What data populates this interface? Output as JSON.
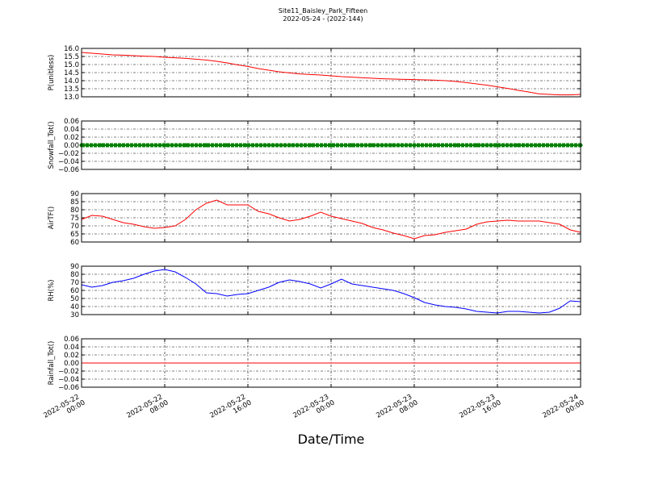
{
  "chart_data": [
    {
      "type": "line",
      "title": "Site11_Baisley_Park_Fifteen",
      "subtitle": "2022-05-24 - (2022-144)",
      "y_label": "P(unitless)",
      "color": "#ff0000",
      "ylim": [
        13.0,
        16.0
      ],
      "yticks": [
        {
          "value": 13.0,
          "label": "13.0"
        },
        13.5,
        {
          "value": 14.0,
          "label": "14.0"
        },
        14.5,
        {
          "value": 15.0,
          "label": "15.0"
        },
        15.5,
        {
          "value": 16.0,
          "label": "16.0"
        }
      ],
      "x": [
        "2022-05-22 00:00",
        "2022-05-22 01:00",
        "2022-05-22 02:00",
        "2022-05-22 03:00",
        "2022-05-22 04:00",
        "2022-05-22 05:00",
        "2022-05-22 06:00",
        "2022-05-22 07:00",
        "2022-05-22 08:00",
        "2022-05-22 09:00",
        "2022-05-22 10:00",
        "2022-05-22 11:00",
        "2022-05-22 12:00",
        "2022-05-22 13:00",
        "2022-05-22 14:00",
        "2022-05-22 15:00",
        "2022-05-22 16:00",
        "2022-05-22 17:00",
        "2022-05-22 18:00",
        "2022-05-22 19:00",
        "2022-05-22 20:00",
        "2022-05-22 21:00",
        "2022-05-22 22:00",
        "2022-05-22 23:00",
        "2022-05-23 00:00",
        "2022-05-23 01:00",
        "2022-05-23 02:00",
        "2022-05-23 03:00",
        "2022-05-23 04:00",
        "2022-05-23 05:00",
        "2022-05-23 06:00",
        "2022-05-23 07:00",
        "2022-05-23 08:00",
        "2022-05-23 09:00",
        "2022-05-23 10:00",
        "2022-05-23 11:00",
        "2022-05-23 12:00",
        "2022-05-23 13:00",
        "2022-05-23 14:00",
        "2022-05-23 15:00",
        "2022-05-23 16:00",
        "2022-05-23 17:00",
        "2022-05-23 18:00",
        "2022-05-23 19:00",
        "2022-05-23 20:00",
        "2022-05-23 21:00",
        "2022-05-23 22:00",
        "2022-05-23 23:00",
        "2022-05-24 00:00"
      ],
      "values": [
        15.75,
        15.7,
        15.65,
        15.6,
        15.58,
        15.55,
        15.52,
        15.5,
        15.45,
        15.42,
        15.38,
        15.33,
        15.28,
        15.2,
        15.1,
        14.98,
        14.88,
        14.75,
        14.65,
        14.55,
        14.48,
        14.42,
        14.38,
        14.35,
        14.3,
        14.25,
        14.22,
        14.18,
        14.15,
        14.12,
        14.1,
        14.08,
        14.07,
        14.05,
        14.03,
        14.0,
        13.95,
        13.88,
        13.8,
        13.72,
        13.62,
        13.52,
        13.4,
        13.3,
        13.18,
        13.15,
        13.12,
        13.12,
        13.15
      ]
    },
    {
      "type": "line",
      "y_label": "Snowfall_Tot()",
      "color": "#008000",
      "marker": true,
      "ylim": [
        -0.06,
        0.06
      ],
      "yticks": [
        {
          "value": -0.06,
          "label": "−0.06"
        },
        {
          "value": -0.04,
          "label": "−0.04"
        },
        {
          "value": -0.02,
          "label": "−0.02"
        },
        {
          "value": 0,
          "label": "0.00"
        },
        0.02,
        0.04,
        0.06
      ],
      "x": [
        "2022-05-22 00:00",
        "2022-05-22 02:00",
        "2022-05-22 04:00",
        "2022-05-22 06:00",
        "2022-05-22 08:00",
        "2022-05-22 10:00",
        "2022-05-22 12:00",
        "2022-05-22 14:00",
        "2022-05-22 16:00",
        "2022-05-22 18:00",
        "2022-05-22 20:00",
        "2022-05-22 22:00",
        "2022-05-23 00:00",
        "2022-05-23 02:00",
        "2022-05-23 04:00",
        "2022-05-23 06:00",
        "2022-05-23 08:00",
        "2022-05-23 10:00",
        "2022-05-23 12:00",
        "2022-05-23 14:00",
        "2022-05-23 16:00",
        "2022-05-23 18:00",
        "2022-05-23 20:00",
        "2022-05-23 22:00",
        "2022-05-24 00:00"
      ],
      "values": [
        0,
        0,
        0,
        0,
        0,
        0,
        0,
        0,
        0,
        0,
        0,
        0,
        0,
        0,
        0,
        0,
        0,
        0,
        0,
        0,
        0,
        0,
        0,
        0,
        0
      ]
    },
    {
      "type": "line",
      "y_label": "AirTF()",
      "color": "#ff0000",
      "ylim": [
        60,
        90
      ],
      "yticks": [
        60,
        65,
        70,
        75,
        80,
        85,
        90
      ],
      "x": [
        "2022-05-22 00:00",
        "2022-05-22 01:00",
        "2022-05-22 02:00",
        "2022-05-22 03:00",
        "2022-05-22 04:00",
        "2022-05-22 05:00",
        "2022-05-22 06:00",
        "2022-05-22 07:00",
        "2022-05-22 08:00",
        "2022-05-22 09:00",
        "2022-05-22 10:00",
        "2022-05-22 11:00",
        "2022-05-22 12:00",
        "2022-05-22 13:00",
        "2022-05-22 14:00",
        "2022-05-22 15:00",
        "2022-05-22 16:00",
        "2022-05-22 17:00",
        "2022-05-22 18:00",
        "2022-05-22 19:00",
        "2022-05-22 20:00",
        "2022-05-22 21:00",
        "2022-05-22 22:00",
        "2022-05-22 23:00",
        "2022-05-23 00:00",
        "2022-05-23 01:00",
        "2022-05-23 02:00",
        "2022-05-23 03:00",
        "2022-05-23 04:00",
        "2022-05-23 05:00",
        "2022-05-23 06:00",
        "2022-05-23 07:00",
        "2022-05-23 08:00",
        "2022-05-23 09:00",
        "2022-05-23 10:00",
        "2022-05-23 11:00",
        "2022-05-23 12:00",
        "2022-05-23 13:00",
        "2022-05-23 14:00",
        "2022-05-23 15:00",
        "2022-05-23 16:00",
        "2022-05-23 17:00",
        "2022-05-23 18:00",
        "2022-05-23 19:00",
        "2022-05-23 20:00",
        "2022-05-23 21:00",
        "2022-05-23 22:00",
        "2022-05-23 23:00",
        "2022-05-24 00:00"
      ],
      "values": [
        74,
        76.5,
        76,
        74,
        72,
        71,
        69.5,
        68.5,
        69,
        70,
        74,
        80,
        84,
        86,
        83,
        83,
        83,
        79,
        77.5,
        75,
        73,
        74,
        76,
        78.5,
        76,
        74.5,
        73,
        71.5,
        69,
        67.5,
        65.5,
        64,
        62,
        64,
        64.5,
        66,
        67,
        68,
        71,
        72.5,
        73,
        73.5,
        73,
        73,
        73,
        72,
        71,
        67.5,
        66
      ]
    },
    {
      "type": "line",
      "y_label": "RH(%)",
      "color": "#0000ff",
      "ylim": [
        30,
        90
      ],
      "yticks": [
        30,
        40,
        50,
        60,
        70,
        80,
        90
      ],
      "x": [
        "2022-05-22 00:00",
        "2022-05-22 01:00",
        "2022-05-22 02:00",
        "2022-05-22 03:00",
        "2022-05-22 04:00",
        "2022-05-22 05:00",
        "2022-05-22 06:00",
        "2022-05-22 07:00",
        "2022-05-22 08:00",
        "2022-05-22 09:00",
        "2022-05-22 10:00",
        "2022-05-22 11:00",
        "2022-05-22 12:00",
        "2022-05-22 13:00",
        "2022-05-22 14:00",
        "2022-05-22 15:00",
        "2022-05-22 16:00",
        "2022-05-22 17:00",
        "2022-05-22 18:00",
        "2022-05-22 19:00",
        "2022-05-22 20:00",
        "2022-05-22 21:00",
        "2022-05-22 22:00",
        "2022-05-22 23:00",
        "2022-05-23 00:00",
        "2022-05-23 01:00",
        "2022-05-23 02:00",
        "2022-05-23 03:00",
        "2022-05-23 04:00",
        "2022-05-23 05:00",
        "2022-05-23 06:00",
        "2022-05-23 07:00",
        "2022-05-23 08:00",
        "2022-05-23 09:00",
        "2022-05-23 10:00",
        "2022-05-23 11:00",
        "2022-05-23 12:00",
        "2022-05-23 13:00",
        "2022-05-23 14:00",
        "2022-05-23 15:00",
        "2022-05-23 16:00",
        "2022-05-23 17:00",
        "2022-05-23 18:00",
        "2022-05-23 19:00",
        "2022-05-23 20:00",
        "2022-05-23 21:00",
        "2022-05-23 22:00",
        "2022-05-23 23:00",
        "2022-05-24 00:00"
      ],
      "values": [
        67,
        64,
        66,
        70,
        72,
        75,
        80,
        84,
        86,
        83,
        76,
        68,
        57,
        56,
        53,
        55,
        56,
        60,
        64,
        70,
        73,
        71,
        68,
        63,
        68,
        74,
        68,
        66,
        64,
        62,
        60,
        56,
        51,
        45,
        42,
        40,
        39,
        37,
        34,
        33,
        32,
        34,
        34,
        33,
        32,
        33,
        38,
        47,
        46
      ]
    },
    {
      "type": "line",
      "y_label": "Rainfall_Tot()",
      "x_label": "Date/Time",
      "color": "#ff0000",
      "ylim": [
        -0.06,
        0.06
      ],
      "yticks": [
        {
          "value": -0.06,
          "label": "−0.06"
        },
        {
          "value": -0.04,
          "label": "−0.04"
        },
        {
          "value": -0.02,
          "label": "−0.02"
        },
        {
          "value": 0,
          "label": "0.00"
        },
        0.02,
        0.04,
        0.06
      ],
      "xlim": [
        "2022-05-22 00:00",
        "2022-05-24 00:00"
      ],
      "xticks": [
        "2022-05-22 00:00",
        "2022-05-22 08:00",
        "2022-05-22 16:00",
        "2022-05-23 00:00",
        "2022-05-23 08:00",
        "2022-05-23 16:00",
        "2022-05-24 00:00"
      ],
      "x": [
        "2022-05-22 00:00",
        "2022-05-22 02:00",
        "2022-05-22 04:00",
        "2022-05-22 06:00",
        "2022-05-22 08:00",
        "2022-05-22 10:00",
        "2022-05-22 12:00",
        "2022-05-22 14:00",
        "2022-05-22 16:00",
        "2022-05-22 18:00",
        "2022-05-22 20:00",
        "2022-05-22 22:00",
        "2022-05-23 00:00",
        "2022-05-23 02:00",
        "2022-05-23 04:00",
        "2022-05-23 06:00",
        "2022-05-23 08:00",
        "2022-05-23 10:00",
        "2022-05-23 12:00",
        "2022-05-23 14:00",
        "2022-05-23 16:00",
        "2022-05-23 18:00",
        "2022-05-23 20:00",
        "2022-05-23 22:00",
        "2022-05-24 00:00"
      ],
      "values": [
        0,
        0,
        0,
        0,
        0,
        0,
        0,
        0,
        0,
        0,
        0,
        0,
        0,
        0,
        0,
        0,
        0,
        0,
        0,
        0,
        0,
        0,
        0,
        0,
        0
      ]
    }
  ]
}
